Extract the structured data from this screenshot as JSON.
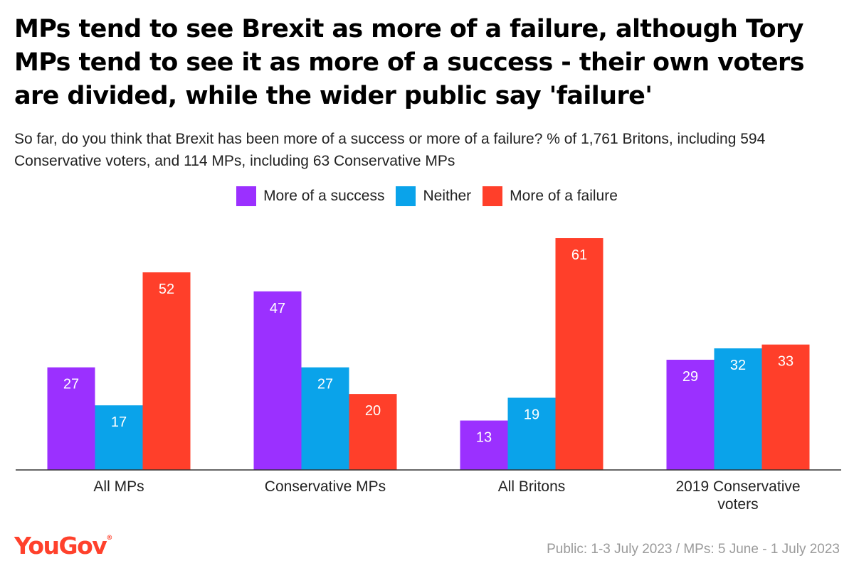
{
  "header": {
    "title": "MPs tend to see Brexit as more of a failure, although Tory MPs tend to see it as more of a success - their own voters are divided, while the wider public say 'failure'",
    "subtitle": "So far, do you think that Brexit has been more of a success or more of a failure? % of 1,761 Britons, including 594 Conservative voters, and 114 MPs, including 63 Conservative MPs"
  },
  "chart_data": {
    "type": "bar",
    "categories": [
      "All MPs",
      "Conservative MPs",
      "All Britons",
      "2019 Conservative voters"
    ],
    "series": [
      {
        "name": "More of a success",
        "color": "#9b30ff",
        "values": [
          27,
          47,
          13,
          29
        ]
      },
      {
        "name": "Neither",
        "color": "#0aa3ea",
        "values": [
          17,
          27,
          19,
          32
        ]
      },
      {
        "name": "More of a failure",
        "color": "#ff3f2a",
        "values": [
          52,
          20,
          61,
          33
        ]
      }
    ],
    "ylim": [
      0,
      61
    ],
    "grid": false,
    "legend": "top-center",
    "data_labels": true
  },
  "footer": {
    "brand": "YouGov",
    "note": "Public: 1-3 July 2023 / MPs: 5 June - 1 July 2023"
  }
}
